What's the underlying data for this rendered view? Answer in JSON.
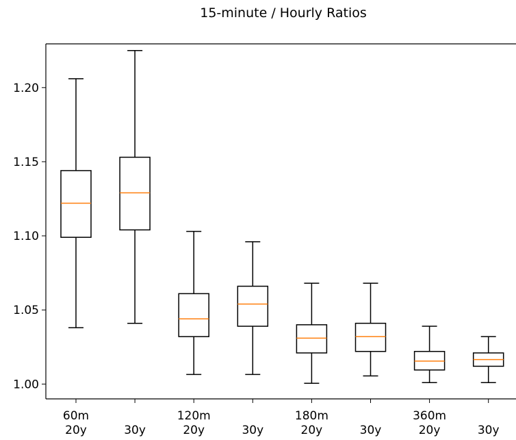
{
  "chart_data": {
    "type": "box",
    "title": "15-minute / Hourly Ratios",
    "xlabel": "",
    "ylabel": "",
    "ylim": [
      0.99,
      1.2295
    ],
    "yticks": [
      1.0,
      1.05,
      1.1,
      1.15,
      1.2
    ],
    "ytick_labels": [
      "1.00",
      "1.05",
      "1.10",
      "1.15",
      "1.20"
    ],
    "categories": [
      {
        "lines": [
          "60m",
          "20y"
        ]
      },
      {
        "lines": [
          "",
          "30y"
        ]
      },
      {
        "lines": [
          "120m",
          "20y"
        ]
      },
      {
        "lines": [
          "",
          "30y"
        ]
      },
      {
        "lines": [
          "180m",
          "20y"
        ]
      },
      {
        "lines": [
          "",
          "30y"
        ]
      },
      {
        "lines": [
          "360m",
          "20y"
        ]
      },
      {
        "lines": [
          "",
          "30y"
        ]
      }
    ],
    "boxes": [
      {
        "whislo": 1.038,
        "q1": 1.099,
        "med": 1.122,
        "q3": 1.144,
        "whishi": 1.206
      },
      {
        "whislo": 1.041,
        "q1": 1.104,
        "med": 1.129,
        "q3": 1.153,
        "whishi": 1.225
      },
      {
        "whislo": 1.0065,
        "q1": 1.032,
        "med": 1.044,
        "q3": 1.061,
        "whishi": 1.103
      },
      {
        "whislo": 1.0065,
        "q1": 1.039,
        "med": 1.054,
        "q3": 1.066,
        "whishi": 1.096
      },
      {
        "whislo": 1.0005,
        "q1": 1.021,
        "med": 1.031,
        "q3": 1.04,
        "whishi": 1.068
      },
      {
        "whislo": 1.0055,
        "q1": 1.022,
        "med": 1.032,
        "q3": 1.041,
        "whishi": 1.068
      },
      {
        "whislo": 1.001,
        "q1": 1.0095,
        "med": 1.0155,
        "q3": 1.022,
        "whishi": 1.039
      },
      {
        "whislo": 1.001,
        "q1": 1.012,
        "med": 1.0165,
        "q3": 1.021,
        "whishi": 1.032
      }
    ],
    "box_color": "#000000",
    "median_color": "#ff7f0e",
    "grid": false,
    "legend": "none"
  }
}
